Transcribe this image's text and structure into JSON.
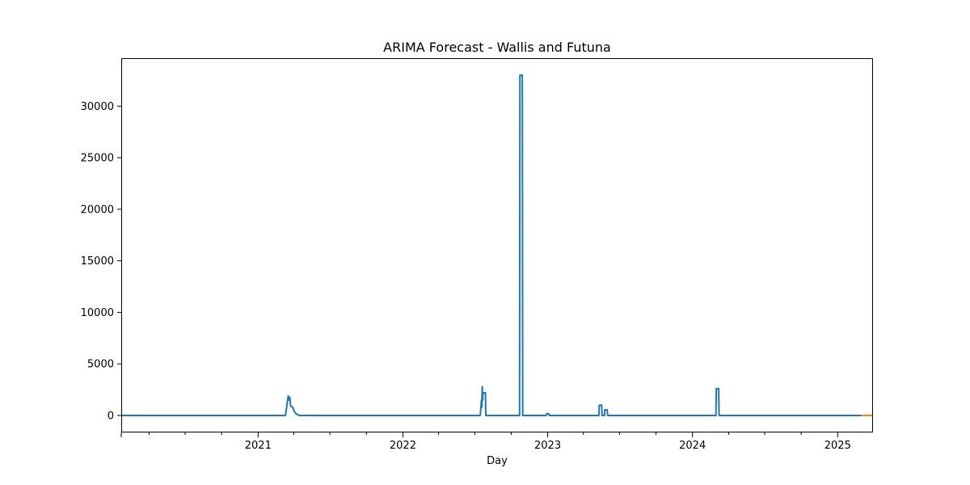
{
  "chart_data": {
    "type": "line",
    "title": "ARIMA Forecast - Wallis and Futuna",
    "xlabel": "Day",
    "ylabel": "",
    "xlim": [
      "2020-01-22",
      "2025-03-31"
    ],
    "ylim": [
      -1650,
      34650
    ],
    "grid": false,
    "x_ticks": [
      "2021",
      "2022",
      "2023",
      "2024",
      "2025"
    ],
    "y_ticks": [
      0,
      5000,
      10000,
      15000,
      20000,
      25000,
      30000
    ],
    "series": [
      {
        "color": "#1f77b4",
        "points": [
          [
            "2020-01-22",
            0
          ],
          [
            "2021-03-11",
            0
          ],
          [
            "2021-03-18",
            1900
          ],
          [
            "2021-03-20",
            1500
          ],
          [
            "2021-03-22",
            1750
          ],
          [
            "2021-03-24",
            900
          ],
          [
            "2021-03-29",
            800
          ],
          [
            "2021-04-02",
            400
          ],
          [
            "2021-04-06",
            200
          ],
          [
            "2021-04-10",
            80
          ],
          [
            "2021-04-15",
            0
          ],
          [
            "2022-07-15",
            0
          ],
          [
            "2022-07-17",
            900
          ],
          [
            "2022-07-18",
            1500
          ],
          [
            "2022-07-19",
            800
          ],
          [
            "2022-07-20",
            2800
          ],
          [
            "2022-07-21",
            1500
          ],
          [
            "2022-07-22",
            2200
          ],
          [
            "2022-07-28",
            2200
          ],
          [
            "2022-07-29",
            0
          ],
          [
            "2022-10-22",
            0
          ],
          [
            "2022-10-23",
            33000
          ],
          [
            "2022-10-29",
            33000
          ],
          [
            "2022-10-30",
            0
          ],
          [
            "2022-12-28",
            0
          ],
          [
            "2022-12-29",
            150
          ],
          [
            "2023-01-04",
            150
          ],
          [
            "2023-01-05",
            0
          ],
          [
            "2023-05-10",
            0
          ],
          [
            "2023-05-11",
            1000
          ],
          [
            "2023-05-17",
            1000
          ],
          [
            "2023-05-18",
            0
          ],
          [
            "2023-05-24",
            0
          ],
          [
            "2023-05-25",
            550
          ],
          [
            "2023-05-31",
            550
          ],
          [
            "2023-06-01",
            0
          ],
          [
            "2024-02-29",
            0
          ],
          [
            "2024-03-01",
            2600
          ],
          [
            "2024-03-07",
            2600
          ],
          [
            "2024-03-08",
            0
          ],
          [
            "2025-03-02",
            0
          ]
        ]
      },
      {
        "color": "#ff7f0e",
        "points": [
          [
            "2025-03-02",
            0
          ],
          [
            "2025-03-31",
            0
          ]
        ]
      }
    ]
  }
}
